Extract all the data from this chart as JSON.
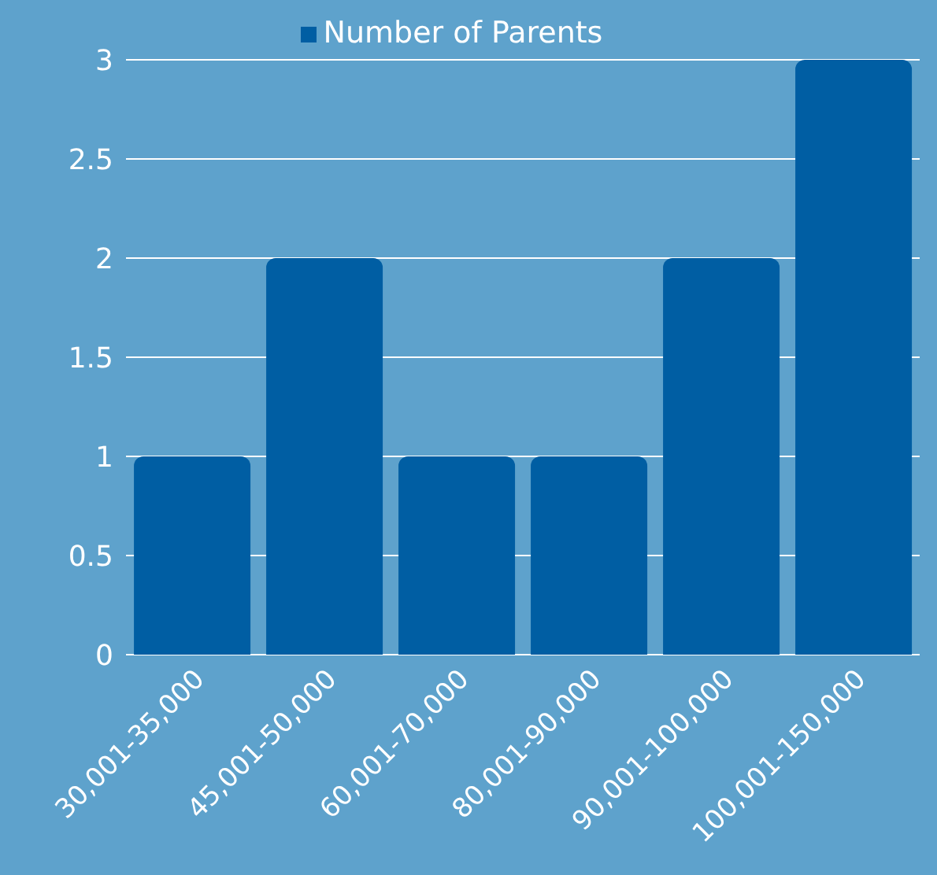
{
  "chart_data": {
    "type": "bar",
    "categories": [
      "30,001-35,000",
      "45,001-50,000",
      "60,001-70,000",
      "80,001-90,000",
      "90,001-100,000",
      "100,001-150,000"
    ],
    "series": [
      {
        "name": "Number of Parents",
        "color": "#005ea3",
        "values": [
          1,
          2,
          1,
          1,
          2,
          3
        ]
      }
    ],
    "ylim": [
      0,
      3
    ],
    "yticks": [
      0,
      0.5,
      1,
      1.5,
      2,
      2.5,
      3
    ],
    "grid": "y",
    "legend": "top"
  }
}
